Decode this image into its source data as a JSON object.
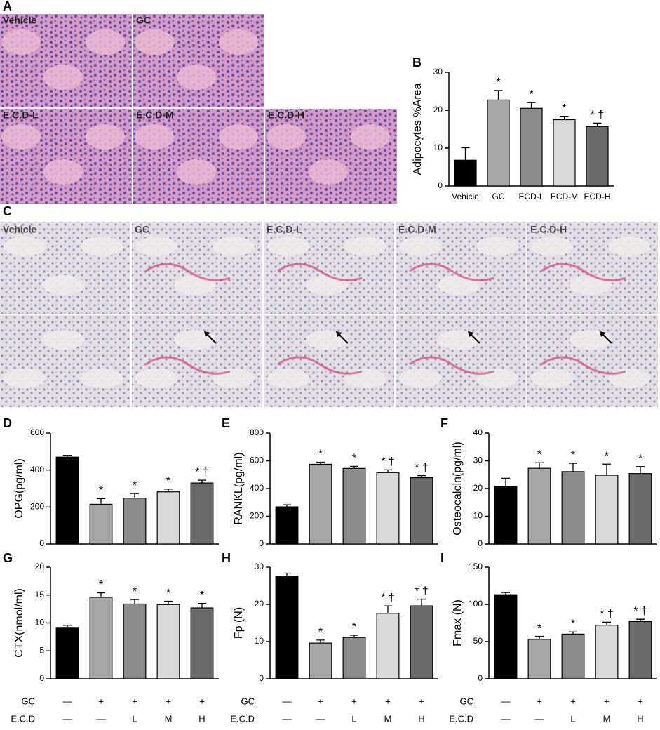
{
  "panel_labels": [
    "A",
    "B",
    "C",
    "D",
    "E",
    "F",
    "G",
    "H",
    "I"
  ],
  "histology_A": {
    "panels": [
      "Vehicle",
      "GC",
      "E.C.D-L",
      "E.C.D-M",
      "E.C.D-H"
    ]
  },
  "histology_C": {
    "panels": [
      "Vehicle",
      "GC",
      "E.C.D-L",
      "E.C.D-M",
      "E.C.D-H"
    ]
  },
  "chart_data": [
    {
      "type": "bar",
      "ylabel": "Adipocytes %Area",
      "categories": [
        "Vehicle",
        "GC",
        "ECD-L",
        "ECD-M",
        "ECD-H"
      ],
      "values": [
        6.8,
        22.7,
        20.5,
        17.5,
        15.7
      ],
      "errors": [
        3.3,
        2.5,
        1.5,
        0.9,
        0.9
      ],
      "annotations": [
        null,
        "*",
        "*",
        "*",
        "* †"
      ],
      "colors": [
        "#000000",
        "#a6a6a6",
        "#8c8c8c",
        "#d9d9d9",
        "#6b6b6b"
      ],
      "ylim": [
        0,
        30
      ],
      "yticks": [
        0,
        10,
        20,
        30
      ]
    },
    {
      "type": "bar",
      "ylabel": "OPG(pg/ml)",
      "values": [
        470,
        215,
        248,
        282,
        330
      ],
      "errors": [
        10,
        30,
        25,
        15,
        15
      ],
      "annotations": [
        null,
        "*",
        "*",
        "*",
        "* †"
      ],
      "colors": [
        "#000000",
        "#a6a6a6",
        "#8c8c8c",
        "#d9d9d9",
        "#6b6b6b"
      ],
      "ylim": [
        0,
        600
      ],
      "yticks": [
        0,
        200,
        400,
        600
      ]
    },
    {
      "type": "bar",
      "ylabel": "RANKL(pg/ml)",
      "values": [
        268,
        575,
        545,
        515,
        478
      ],
      "errors": [
        15,
        15,
        15,
        20,
        15
      ],
      "annotations": [
        null,
        "*",
        "*",
        "* †",
        "* †"
      ],
      "colors": [
        "#000000",
        "#a6a6a6",
        "#8c8c8c",
        "#d9d9d9",
        "#6b6b6b"
      ],
      "ylim": [
        0,
        800
      ],
      "yticks": [
        0,
        200,
        400,
        600,
        800
      ]
    },
    {
      "type": "bar",
      "ylabel": "Osteocalcin(pg/ml)",
      "values": [
        20.7,
        27.3,
        26.1,
        24.8,
        25.4
      ],
      "errors": [
        3,
        2,
        3,
        4,
        2.5
      ],
      "annotations": [
        null,
        "*",
        "*",
        "*",
        "*"
      ],
      "colors": [
        "#000000",
        "#a6a6a6",
        "#8c8c8c",
        "#d9d9d9",
        "#6b6b6b"
      ],
      "ylim": [
        0,
        40
      ],
      "yticks": [
        0,
        10,
        20,
        30,
        40
      ]
    },
    {
      "type": "bar",
      "ylabel": "CTX(nmol/ml)",
      "values": [
        9.2,
        14.6,
        13.4,
        13.3,
        12.7
      ],
      "errors": [
        0.4,
        0.8,
        0.8,
        0.6,
        0.8
      ],
      "annotations": [
        null,
        "*",
        "*",
        "*",
        "*"
      ],
      "colors": [
        "#000000",
        "#a6a6a6",
        "#8c8c8c",
        "#d9d9d9",
        "#6b6b6b"
      ],
      "ylim": [
        0,
        20
      ],
      "yticks": [
        0,
        5,
        10,
        15,
        20
      ]
    },
    {
      "type": "bar",
      "ylabel": "Fp (N)",
      "values": [
        27.6,
        9.6,
        11.1,
        17.6,
        19.6
      ],
      "errors": [
        0.8,
        0.8,
        0.6,
        2,
        1.8
      ],
      "annotations": [
        null,
        "*",
        "*",
        "* †",
        "* †"
      ],
      "colors": [
        "#000000",
        "#a6a6a6",
        "#8c8c8c",
        "#d9d9d9",
        "#6b6b6b"
      ],
      "ylim": [
        0,
        30
      ],
      "yticks": [
        0,
        10,
        20,
        30
      ]
    },
    {
      "type": "bar",
      "ylabel": "Fmax (N)",
      "values": [
        113,
        53,
        60,
        72,
        77
      ],
      "errors": [
        3,
        4,
        3,
        4,
        3
      ],
      "annotations": [
        null,
        "*",
        "*",
        "* †",
        "* †"
      ],
      "colors": [
        "#000000",
        "#a6a6a6",
        "#8c8c8c",
        "#d9d9d9",
        "#6b6b6b"
      ],
      "ylim": [
        0,
        150
      ],
      "yticks": [
        0,
        50,
        100,
        150
      ]
    }
  ],
  "treatment_table": {
    "rows": [
      {
        "label": "GC",
        "cells": [
          "—",
          "+",
          "+",
          "+",
          "+"
        ]
      },
      {
        "label": "E.C.D",
        "cells": [
          "—",
          "—",
          "L",
          "M",
          "H"
        ]
      }
    ]
  }
}
